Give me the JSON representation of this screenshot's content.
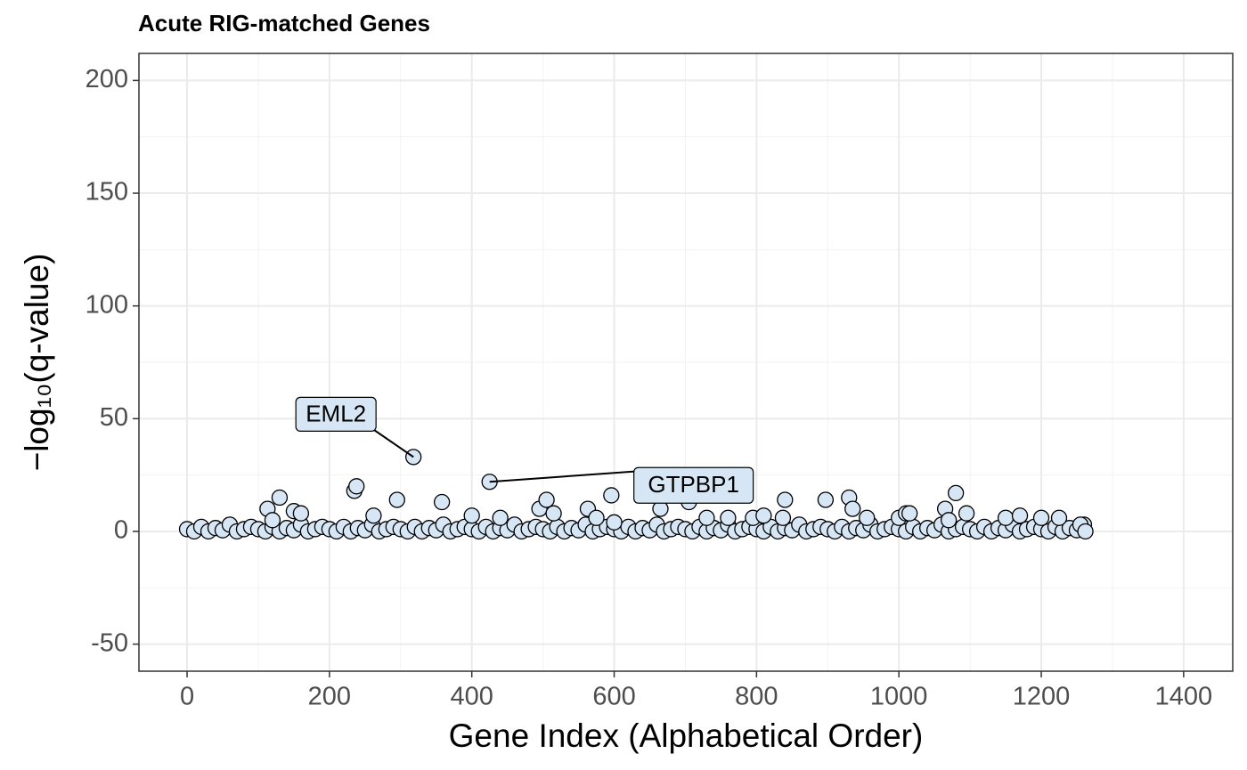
{
  "chart_data": {
    "type": "scatter",
    "title": "Acute RIG-matched Genes",
    "xlabel": "Gene Index (Alphabetical Order)",
    "ylabel": "−log₁₀(q-value)",
    "xlim": [
      -67.6,
      1469
    ],
    "ylim": [
      -62,
      212
    ],
    "xticks": [
      0,
      200,
      400,
      600,
      800,
      1000,
      1200,
      1400
    ],
    "yticks": [
      -50,
      0,
      50,
      100,
      150,
      200
    ],
    "xminor": [
      100,
      300,
      500,
      700,
      900,
      1100,
      1300
    ],
    "yminor": [
      -25,
      25,
      75,
      125,
      175
    ],
    "grid": true,
    "color": "#d6e6f5",
    "x": [
      0,
      10,
      20,
      30,
      40,
      50,
      60,
      70,
      80,
      90,
      100,
      110,
      120,
      130,
      140,
      150,
      160,
      170,
      180,
      190,
      200,
      210,
      220,
      230,
      240,
      250,
      260,
      270,
      280,
      290,
      300,
      310,
      320,
      330,
      340,
      350,
      360,
      370,
      380,
      390,
      400,
      410,
      420,
      430,
      440,
      450,
      460,
      470,
      480,
      490,
      500,
      510,
      520,
      530,
      540,
      550,
      560,
      570,
      580,
      590,
      600,
      610,
      620,
      630,
      640,
      650,
      660,
      670,
      680,
      690,
      700,
      710,
      720,
      730,
      740,
      750,
      760,
      770,
      780,
      790,
      800,
      810,
      820,
      830,
      840,
      850,
      860,
      870,
      880,
      890,
      900,
      910,
      920,
      930,
      940,
      950,
      960,
      970,
      980,
      990,
      1000,
      1010,
      1020,
      1030,
      1040,
      1050,
      1060,
      1070,
      1080,
      1090,
      1100,
      1110,
      1120,
      1130,
      1140,
      1150,
      1160,
      1170,
      1180,
      1190,
      1200,
      1210,
      1220,
      1230,
      1240,
      1250,
      1260,
      113,
      120,
      130,
      150,
      160,
      235,
      238,
      262,
      295,
      318,
      358,
      400,
      425,
      440,
      495,
      505,
      515,
      563,
      575,
      596,
      600,
      665,
      705,
      730,
      760,
      795,
      810,
      837,
      840,
      897,
      930,
      935,
      955,
      1000,
      1010,
      1015,
      1065,
      1070,
      1080,
      1095,
      1150,
      1170,
      1200,
      1225,
      1255,
      1262
    ],
    "values": [
      1,
      0,
      2,
      0,
      1.5,
      0.5,
      3,
      0,
      1,
      2,
      1,
      0,
      2,
      0,
      1.5,
      0.5,
      3,
      0,
      1,
      2,
      1,
      0,
      2,
      0,
      1.5,
      0.5,
      3,
      0,
      1,
      2,
      1,
      0,
      2,
      0,
      1.5,
      0.5,
      3,
      0,
      1,
      2,
      1,
      0,
      2,
      0,
      1.5,
      0.5,
      3,
      0,
      1,
      2,
      1,
      0,
      2,
      0,
      1.5,
      0.5,
      3,
      0,
      1,
      2,
      1,
      0,
      2,
      0,
      1.5,
      0.5,
      3,
      0,
      1,
      2,
      1,
      0,
      2,
      0,
      1.5,
      0.5,
      3,
      0,
      1,
      2,
      1,
      0,
      2,
      0,
      1.5,
      0.5,
      3,
      0,
      1,
      2,
      1,
      0,
      2,
      0,
      1.5,
      0.5,
      3,
      0,
      1,
      2,
      1,
      0,
      2,
      0,
      1.5,
      0.5,
      3,
      0,
      1,
      2,
      1,
      0,
      2,
      0,
      1.5,
      0.5,
      3,
      0,
      1,
      2,
      1,
      0,
      2,
      0,
      1.5,
      0.5,
      3,
      10,
      5,
      15,
      9,
      8,
      18,
      20,
      7,
      14,
      33,
      13,
      7,
      22,
      6,
      10,
      14,
      8,
      10,
      6,
      16,
      4,
      10,
      13,
      6,
      6,
      6,
      7,
      6,
      14,
      14,
      15,
      10,
      6,
      6,
      8,
      8,
      10,
      5,
      17,
      8,
      6,
      7,
      6,
      6,
      3,
      0
    ],
    "annotations": [
      {
        "text": "EML2",
        "x": 318,
        "y": 33
      },
      {
        "text": "GTPBP1",
        "x": 425,
        "y": 22
      }
    ]
  }
}
